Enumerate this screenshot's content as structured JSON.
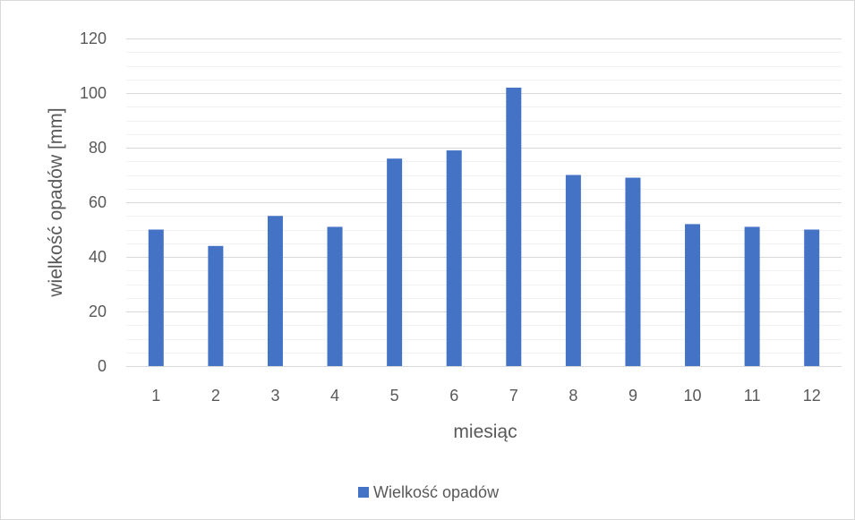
{
  "chart_data": {
    "type": "bar",
    "categories": [
      "1",
      "2",
      "3",
      "4",
      "5",
      "6",
      "7",
      "8",
      "9",
      "10",
      "11",
      "12"
    ],
    "series": [
      {
        "name": "Wielkość opadów",
        "values": [
          50,
          44,
          55,
          51,
          76,
          79,
          102,
          70,
          69,
          52,
          51,
          50
        ],
        "color": "#4472c4"
      }
    ],
    "xlabel": "miesiąc",
    "ylabel": "wielkość opadów [mm]",
    "ylim": [
      0,
      120
    ],
    "ymajor_ticks": [
      0,
      20,
      40,
      60,
      80,
      100,
      120
    ],
    "ymajor_tick_labels": [
      "0",
      "20",
      "40",
      "60",
      "80",
      "100",
      "120"
    ],
    "yminor_step": 5,
    "grid": true,
    "legend_position": "bottom",
    "colors": {
      "grid_major": "#d9d9d9",
      "grid_minor": "#f2f2f2",
      "text": "#595959",
      "frame": "#d9d9d9"
    }
  }
}
